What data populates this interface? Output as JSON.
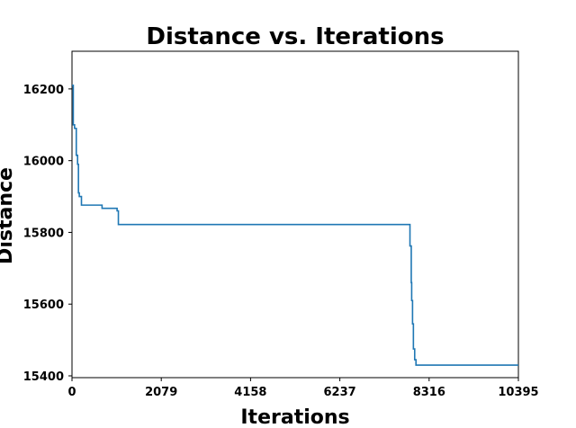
{
  "chart_data": {
    "type": "line",
    "title": "Distance vs. Iterations",
    "xlabel": "Iterations",
    "ylabel": "Distance",
    "xlim": [
      0,
      10395
    ],
    "ylim": [
      15395,
      16305
    ],
    "xticks": [
      0,
      2079,
      4158,
      6237,
      8316,
      10395
    ],
    "yticks": [
      15400,
      15600,
      15800,
      16000,
      16200
    ],
    "grid": false,
    "line_color": "#1f77b4",
    "series": [
      {
        "x": [
          0,
          30,
          30,
          60,
          60,
          100,
          100,
          130,
          130,
          150,
          150,
          170,
          170,
          190,
          190,
          220,
          220,
          260,
          260,
          700,
          700,
          1050,
          1050,
          1080,
          1080,
          7870,
          7870,
          7900,
          7900,
          7910,
          7910,
          7930,
          7930,
          7950,
          7950,
          7980,
          7980,
          8010,
          8010,
          8050,
          8050,
          10395
        ],
        "y": [
          16210,
          16210,
          16100,
          16100,
          16090,
          16090,
          16015,
          16015,
          15990,
          15990,
          15910,
          15910,
          15900,
          15900,
          15900,
          15900,
          15876,
          15876,
          15876,
          15876,
          15867,
          15867,
          15860,
          15860,
          15822,
          15822,
          15762,
          15762,
          15660,
          15660,
          15610,
          15610,
          15545,
          15545,
          15475,
          15475,
          15445,
          15445,
          15430,
          15430,
          15430,
          15430
        ]
      }
    ]
  }
}
